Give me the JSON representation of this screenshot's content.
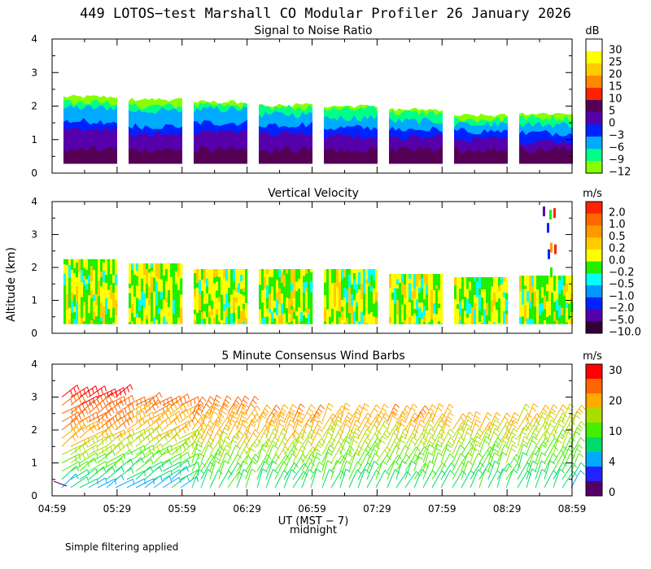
{
  "title": "449 LOTOS−test Marshall CO Modular Profiler 26 January 2026",
  "y_axis_label": "Altitude (km)",
  "x_axis_label": "UT  (MST − 7)",
  "midnight_label": "midnight",
  "footnote": "Simple filtering applied",
  "chart_data": [
    {
      "type": "heatmap",
      "title": "Signal to Noise Ratio",
      "units": "dB",
      "ylim": [
        0,
        4
      ],
      "yticks": [
        "0",
        "1",
        "2",
        "3",
        "4"
      ],
      "x_ticks": [
        "04:59",
        "05:29",
        "05:59",
        "06:29",
        "06:59",
        "07:29",
        "07:59",
        "08:29",
        "08:59"
      ],
      "colorbar_labels": [
        "30",
        "25",
        "20",
        "15",
        "10",
        "5",
        "0",
        "−3",
        "−6",
        "−9",
        "−12"
      ],
      "colorbar_colors": [
        "#ffffff",
        "#ffff00",
        "#ffcc00",
        "#ff8800",
        "#ff2200",
        "#550055",
        "#5500aa",
        "#0022ff",
        "#00aaff",
        "#00ff88",
        "#88ff00"
      ],
      "blocks": [
        {
          "top_km": 2.28,
          "layers": [
            1.55,
            1.95,
            2.1
          ]
        },
        {
          "top_km": 2.2,
          "layers": [
            1.4,
            1.85,
            2.0
          ]
        },
        {
          "top_km": 2.12,
          "layers": [
            1.5,
            1.9,
            2.0
          ]
        },
        {
          "top_km": 2.03,
          "layers": [
            1.45,
            1.75,
            1.95
          ]
        },
        {
          "top_km": 2.0,
          "layers": [
            1.35,
            1.65,
            1.9
          ]
        },
        {
          "top_km": 1.9,
          "layers": [
            1.3,
            1.55,
            1.8
          ]
        },
        {
          "top_km": 1.72,
          "layers": [
            1.25,
            1.45,
            1.6
          ]
        },
        {
          "top_km": 1.78,
          "layers": [
            1.2,
            1.45,
            1.65
          ]
        }
      ]
    },
    {
      "type": "heatmap",
      "title": "Vertical Velocity",
      "units": "m/s",
      "ylim": [
        0,
        4
      ],
      "yticks": [
        "0",
        "1",
        "2",
        "3",
        "4"
      ],
      "x_ticks": [
        "04:59",
        "05:29",
        "05:59",
        "06:29",
        "06:59",
        "07:29",
        "07:59",
        "08:29",
        "08:59"
      ],
      "colorbar_labels": [
        "2.0",
        "1.0",
        "0.5",
        "0.2",
        "0.0",
        "−0.2",
        "−0.5",
        "−1.0",
        "−2.0",
        "−5.0",
        "−10.0"
      ],
      "colorbar_colors": [
        "#ff2200",
        "#ff6600",
        "#ff9900",
        "#ffcc00",
        "#ffff00",
        "#22ee00",
        "#00ffff",
        "#0099ff",
        "#0022ff",
        "#5500aa",
        "#330033"
      ],
      "blocks": [
        {
          "top_km": 2.25
        },
        {
          "top_km": 2.12
        },
        {
          "top_km": 1.95
        },
        {
          "top_km": 1.95
        },
        {
          "top_km": 1.95
        },
        {
          "top_km": 1.8
        },
        {
          "top_km": 1.7
        },
        {
          "top_km": 1.75
        }
      ]
    },
    {
      "type": "wind_barbs",
      "title": "5 Minute Consensus Wind Barbs",
      "units": "m/s",
      "ylim": [
        0,
        4
      ],
      "yticks": [
        "0",
        "1",
        "2",
        "3",
        "4"
      ],
      "x_ticks": [
        "04:59",
        "05:29",
        "05:59",
        "06:29",
        "06:59",
        "07:29",
        "07:59",
        "08:29",
        "08:59"
      ],
      "colorbar_labels": [
        "30",
        "20",
        "10",
        "4",
        "0"
      ],
      "colorbar_colors": [
        "#ff0000",
        "#ff6600",
        "#ffaa00",
        "#aadd00",
        "#44ee00",
        "#00dd66",
        "#00aaff",
        "#2222ff",
        "#550066"
      ],
      "groups": [
        {
          "top_km": 3.0,
          "peak_speed": 28
        },
        {
          "top_km": 2.85,
          "peak_speed": 22
        },
        {
          "top_km": 2.5,
          "peak_speed": 18
        },
        {
          "top_km": 2.3,
          "peak_speed": 16
        },
        {
          "top_km": 2.3,
          "peak_speed": 14
        },
        {
          "top_km": 2.3,
          "peak_speed": 15
        },
        {
          "top_km": 2.2,
          "peak_speed": 14
        },
        {
          "top_km": 2.3,
          "peak_speed": 12
        }
      ]
    }
  ]
}
